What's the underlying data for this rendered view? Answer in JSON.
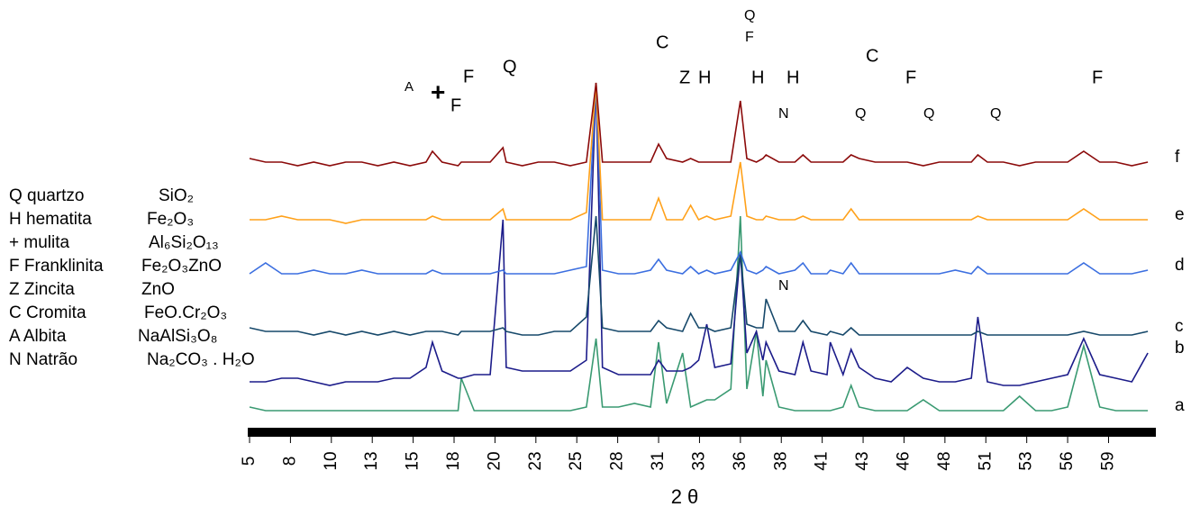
{
  "chart_data": {
    "type": "line",
    "x_label": "2 θ",
    "x": [
      5,
      6,
      7,
      8,
      9,
      10,
      11,
      12,
      13,
      14,
      15,
      16,
      16.4,
      17,
      18,
      18.2,
      19,
      20,
      20.8,
      21,
      22,
      23,
      24,
      25,
      26,
      26.6,
      27,
      28,
      29,
      30,
      30.5,
      31,
      32,
      32.5,
      33,
      33.5,
      34,
      35,
      35.6,
      36,
      36.6,
      37,
      37.2,
      38,
      39,
      39.5,
      40,
      41,
      41.2,
      42,
      42.5,
      43,
      44,
      45,
      46,
      47,
      48,
      49,
      50,
      50.4,
      51,
      52,
      53,
      54,
      55,
      56,
      57,
      58,
      59,
      60,
      61
    ],
    "xlim": [
      5,
      61.5
    ],
    "xticks": [
      5,
      {
        "value": 7.55,
        "label": "8"
      },
      {
        "value": 10.1,
        "label": "10"
      },
      {
        "value": 12.65,
        "label": "13"
      },
      {
        "value": 15.2,
        "label": "15"
      },
      {
        "value": 17.75,
        "label": "18"
      },
      {
        "value": 20.3,
        "label": "20"
      },
      {
        "value": 22.85,
        "label": "23"
      },
      {
        "value": 25.4,
        "label": "25"
      },
      {
        "value": 27.95,
        "label": "28"
      },
      {
        "value": 30.5,
        "label": "31"
      },
      {
        "value": 33.05,
        "label": "33"
      },
      {
        "value": 35.6,
        "label": "36"
      },
      {
        "value": 38.15,
        "label": "38"
      },
      {
        "value": 40.7,
        "label": "41"
      },
      {
        "value": 43.25,
        "label": "43"
      },
      {
        "value": 45.8,
        "label": "46"
      },
      {
        "value": 48.35,
        "label": "48"
      },
      {
        "value": 50.9,
        "label": "51"
      },
      {
        "value": 53.45,
        "label": "53"
      },
      56,
      {
        "value": 58.55,
        "label": "59"
      }
    ],
    "ylim": [
      0,
      100
    ],
    "series": [
      {
        "name": "a",
        "color": "#3a9a72",
        "values": [
          7,
          6,
          6,
          6,
          6,
          6,
          6,
          6,
          6,
          6,
          6,
          6,
          6,
          6,
          6,
          15,
          6,
          6,
          6,
          6,
          6,
          6,
          6,
          6,
          7,
          26,
          7,
          7,
          8,
          7,
          25,
          8,
          22,
          7,
          8,
          9,
          9,
          12,
          60,
          12,
          28,
          10,
          20,
          7,
          6,
          6,
          6,
          6,
          6,
          7,
          13,
          7,
          6,
          6,
          6,
          9,
          6,
          6,
          6,
          6,
          6,
          6,
          10,
          6,
          6,
          7,
          24,
          7,
          6,
          6,
          6
        ]
      },
      {
        "name": "b",
        "color": "#1c1c8a",
        "values": [
          14,
          14,
          15,
          15,
          14,
          13,
          14,
          14,
          14,
          15,
          15,
          18,
          25,
          17,
          15,
          15,
          16,
          16,
          59,
          18,
          17,
          17,
          17,
          17,
          20,
          97,
          18,
          16,
          16,
          16,
          20,
          17,
          17,
          18,
          20,
          30,
          18,
          19,
          50,
          22,
          28,
          20,
          25,
          17,
          16,
          25,
          17,
          16,
          25,
          16,
          23,
          18,
          15,
          14,
          18,
          15,
          14,
          14,
          15,
          32,
          14,
          13,
          13,
          14,
          15,
          16,
          26,
          16,
          15,
          14,
          22
        ]
      },
      {
        "name": "c",
        "color": "#16486a",
        "values": [
          29,
          28,
          28,
          28,
          27,
          28,
          27,
          28,
          27,
          28,
          27,
          28,
          28,
          28,
          27,
          28,
          28,
          28,
          29,
          28,
          27,
          27,
          28,
          28,
          32,
          60,
          29,
          28,
          28,
          28,
          31,
          29,
          28,
          33,
          29,
          29,
          28,
          29,
          50,
          30,
          29,
          29,
          37,
          28,
          28,
          31,
          28,
          27,
          28,
          27,
          29,
          27,
          27,
          27,
          27,
          27,
          27,
          27,
          27,
          28,
          27,
          27,
          27,
          27,
          27,
          27,
          28,
          27,
          27,
          27,
          28
        ]
      },
      {
        "name": "d",
        "color": "#3c6fe0",
        "values": [
          44,
          47,
          44,
          44,
          45,
          44,
          44,
          45,
          44,
          44,
          44,
          44,
          45,
          44,
          44,
          44,
          44,
          44,
          45,
          44,
          44,
          44,
          44,
          45,
          46,
          97,
          45,
          44,
          44,
          45,
          48,
          45,
          44,
          46,
          44,
          45,
          44,
          45,
          50,
          45,
          44,
          45,
          46,
          44,
          45,
          47,
          44,
          44,
          45,
          44,
          47,
          44,
          44,
          44,
          44,
          44,
          44,
          45,
          44,
          46,
          44,
          44,
          44,
          44,
          44,
          44,
          47,
          44,
          44,
          44,
          45
        ]
      },
      {
        "name": "e",
        "color": "#ffa11a",
        "values": [
          59,
          59,
          60,
          59,
          59,
          59,
          58,
          59,
          59,
          59,
          59,
          59,
          60,
          59,
          59,
          59,
          59,
          59,
          62,
          59,
          59,
          59,
          59,
          59,
          61,
          97,
          59,
          59,
          59,
          59,
          65,
          59,
          59,
          63,
          59,
          60,
          59,
          60,
          75,
          60,
          59,
          59,
          60,
          59,
          59,
          60,
          59,
          59,
          59,
          59,
          62,
          59,
          59,
          59,
          59,
          59,
          59,
          59,
          59,
          60,
          59,
          59,
          59,
          59,
          59,
          59,
          62,
          59,
          59,
          59,
          59
        ]
      },
      {
        "name": "f",
        "color": "#8b0a0a",
        "values": [
          76,
          75,
          75,
          74,
          75,
          74,
          75,
          75,
          74,
          75,
          74,
          75,
          78,
          75,
          74,
          75,
          75,
          75,
          79,
          75,
          74,
          75,
          75,
          74,
          75,
          97,
          75,
          75,
          75,
          75,
          80,
          76,
          75,
          76,
          75,
          75,
          75,
          75,
          92,
          76,
          75,
          76,
          77,
          75,
          75,
          77,
          75,
          75,
          75,
          75,
          77,
          76,
          75,
          75,
          75,
          74,
          75,
          75,
          75,
          77,
          75,
          75,
          74,
          75,
          75,
          75,
          78,
          75,
          75,
          74,
          75
        ]
      }
    ],
    "peak_labels": [
      "A",
      "+",
      "F",
      "F",
      "Q",
      "C",
      "Z",
      "H",
      "Q",
      "F",
      "H",
      "H",
      "N",
      "C",
      "F",
      "Q",
      "Q",
      "Q",
      "F",
      "N"
    ],
    "legend": [
      {
        "phase": "Q quartzo",
        "formula": "SiO₂"
      },
      {
        "phase": "H hematita",
        "formula": "Fe₂O₃"
      },
      {
        "phase": "+  mulita",
        "formula": "Al₆Si₂O₁₃"
      },
      {
        "phase": "F Franklinita",
        "formula": "Fe₂O₃ZnO"
      },
      {
        "phase": "Z Zincita",
        "formula": "ZnO"
      },
      {
        "phase": "C Cromita",
        "formula": "FeO.Cr₂O₃"
      },
      {
        "phase": "A Albita",
        "formula": "NaAlSi₃O₈"
      },
      {
        "phase": "N Natrão",
        "formula": "Na₂CO₃ . H₂O"
      }
    ]
  }
}
